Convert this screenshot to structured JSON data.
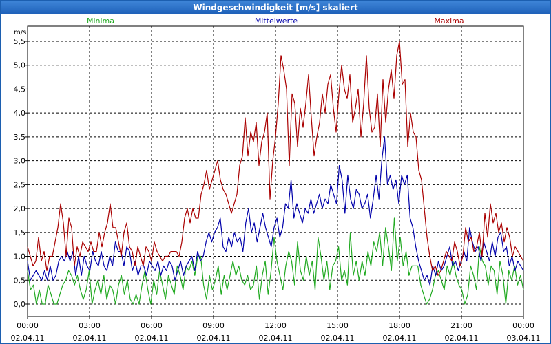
{
  "window": {
    "title": "Windgeschwindigkeit [m/s] skaliert"
  },
  "colors": {
    "minima": "#22aa22",
    "mittel": "#0000aa",
    "maxima": "#aa0000",
    "grid": "#000000"
  },
  "chart_data": {
    "type": "line",
    "title": "Windgeschwindigkeit [m/s] skaliert",
    "ylabel": "m/s",
    "ylim": [
      0,
      5.5
    ],
    "yticks": [
      "0,0",
      "0,5",
      "1,0",
      "1,5",
      "2,0",
      "2,5",
      "3,0",
      "3,5",
      "4,0",
      "4,5",
      "5,0",
      "5,5"
    ],
    "xlim": [
      "02.04.11 00:00",
      "03.04.11 00:00"
    ],
    "xticks": [
      {
        "time": "00:00",
        "date": "02.04.11"
      },
      {
        "time": "03:00",
        "date": "02.04.11"
      },
      {
        "time": "06:00",
        "date": "02.04.11"
      },
      {
        "time": "09:00",
        "date": "02.04.11"
      },
      {
        "time": "12:00",
        "date": "02.04.11"
      },
      {
        "time": "15:00",
        "date": "02.04.11"
      },
      {
        "time": "18:00",
        "date": "02.04.11"
      },
      {
        "time": "21:00",
        "date": "02.04.11"
      },
      {
        "time": "00:00",
        "date": "03.04.11"
      }
    ],
    "grid": true,
    "legend": "top",
    "series": [
      {
        "name": "Minima",
        "color": "#22aa22",
        "values": [
          0.7,
          0.3,
          0.4,
          0.0,
          0.3,
          0.0,
          0.0,
          0.4,
          0.2,
          0.0,
          0.0,
          0.2,
          0.4,
          0.5,
          0.7,
          0.6,
          0.4,
          0.6,
          0.3,
          0.1,
          0.3,
          0.7,
          0.0,
          0.3,
          0.5,
          0.2,
          0.6,
          0.1,
          0.4,
          0.3,
          0.0,
          0.4,
          0.6,
          0.2,
          0.5,
          0.1,
          0.0,
          0.2,
          0.0,
          0.4,
          0.7,
          0.3,
          0.0,
          0.5,
          0.2,
          0.7,
          0.4,
          0.1,
          0.6,
          0.4,
          0.2,
          0.8,
          0.6,
          0.3,
          0.8,
          0.7,
          0.9,
          0.6,
          1.0,
          1.0,
          0.4,
          0.1,
          0.6,
          0.3,
          0.5,
          0.8,
          0.2,
          0.6,
          0.3,
          0.6,
          0.9,
          0.6,
          0.8,
          0.5,
          0.4,
          0.6,
          0.3,
          0.4,
          0.8,
          0.1,
          0.6,
          0.9,
          0.2,
          0.7,
          1.4,
          0.9,
          0.6,
          0.3,
          0.8,
          1.1,
          0.9,
          0.4,
          1.3,
          0.7,
          0.5,
          1.0,
          0.6,
          0.9,
          0.3,
          1.4,
          1.0,
          0.5,
          0.9,
          0.3,
          0.8,
          0.9,
          1.2,
          0.5,
          0.7,
          0.4,
          1.5,
          0.6,
          0.9,
          0.5,
          0.9,
          0.6,
          1.1,
          0.8,
          1.3,
          1.1,
          1.5,
          0.8,
          1.6,
          1.2,
          0.7,
          1.8,
          0.9,
          1.4,
          0.8,
          1.1,
          0.6,
          0.8,
          0.8,
          0.8,
          0.4,
          0.2,
          0.0,
          0.1,
          0.3,
          0.6,
          0.7,
          0.5,
          0.3,
          0.8,
          0.6,
          0.9,
          0.6,
          0.4,
          0.3,
          0.0,
          0.2,
          0.8,
          0.6,
          0.3,
          1.2,
          0.9,
          0.8,
          0.4,
          0.8,
          0.7,
          0.2,
          0.9,
          0.6,
          0.0,
          0.7,
          0.5,
          0.8,
          0.4,
          0.6,
          0.3
        ]
      },
      {
        "name": "Mittelwerte",
        "color": "#0000aa",
        "values": [
          0.9,
          0.5,
          0.6,
          0.7,
          0.6,
          0.5,
          0.7,
          0.5,
          0.8,
          0.5,
          0.6,
          0.9,
          1.0,
          0.9,
          1.1,
          0.9,
          1.1,
          0.6,
          1.0,
          0.6,
          1.0,
          0.8,
          0.7,
          1.1,
          0.9,
          0.8,
          1.1,
          0.8,
          0.7,
          1.0,
          0.8,
          1.3,
          1.1,
          1.1,
          0.8,
          1.2,
          1.1,
          0.7,
          0.9,
          0.6,
          0.8,
          0.8,
          0.6,
          0.9,
          0.8,
          0.7,
          0.9,
          0.6,
          0.8,
          0.7,
          0.9,
          0.8,
          0.5,
          0.7,
          0.9,
          0.6,
          0.8,
          0.9,
          1.0,
          0.7,
          1.1,
          0.9,
          1.0,
          1.3,
          1.5,
          1.3,
          1.5,
          1.6,
          1.8,
          1.2,
          1.1,
          1.4,
          1.2,
          1.5,
          1.3,
          1.4,
          1.1,
          1.7,
          2.0,
          1.5,
          1.7,
          1.3,
          1.6,
          1.9,
          1.6,
          1.4,
          1.2,
          1.6,
          1.8,
          1.4,
          1.6,
          2.1,
          2.0,
          2.6,
          1.8,
          2.1,
          1.9,
          1.7,
          2.0,
          1.9,
          2.2,
          1.9,
          2.1,
          2.3,
          2.0,
          2.2,
          2.1,
          2.5,
          2.3,
          2.1,
          2.9,
          2.6,
          1.9,
          2.7,
          2.2,
          2.0,
          2.4,
          2.3,
          2.0,
          2.1,
          2.3,
          1.8,
          2.2,
          2.7,
          2.2,
          3.0,
          3.5,
          2.5,
          2.7,
          2.4,
          2.6,
          2.1,
          2.7,
          2.5,
          2.7,
          1.8,
          1.6,
          1.2,
          0.9,
          0.7,
          0.5,
          0.6,
          0.4,
          0.8,
          0.6,
          0.9,
          0.7,
          0.8,
          1.0,
          1.2,
          0.8,
          0.9,
          0.7,
          0.9,
          1.1,
          0.9,
          1.6,
          1.3,
          1.1,
          1.2,
          0.9,
          1.3,
          1.1,
          0.9,
          1.3,
          1.0,
          1.4,
          1.5,
          1.1,
          1.2,
          0.8,
          1.0,
          0.7,
          0.9,
          0.8,
          0.7
        ]
      },
      {
        "name": "Maxima",
        "color": "#aa0000",
        "values": [
          1.2,
          1.0,
          0.8,
          0.9,
          1.4,
          0.9,
          1.1,
          0.7,
          1.0,
          1.0,
          1.3,
          1.6,
          2.1,
          1.7,
          1.0,
          1.8,
          1.6,
          0.8,
          1.2,
          1.0,
          1.3,
          1.2,
          1.1,
          1.3,
          1.1,
          1.1,
          1.5,
          1.2,
          1.5,
          1.7,
          2.1,
          1.6,
          1.6,
          1.3,
          1.0,
          1.5,
          1.7,
          1.2,
          1.1,
          0.8,
          1.2,
          1.0,
          0.8,
          1.2,
          1.1,
          0.9,
          1.3,
          1.1,
          1.0,
          0.9,
          1.0,
          1.0,
          1.1,
          1.1,
          1.1,
          1.0,
          1.3,
          1.8,
          2.0,
          1.7,
          2.0,
          1.8,
          1.8,
          2.3,
          2.5,
          2.8,
          2.4,
          2.6,
          2.8,
          3.0,
          2.6,
          2.4,
          2.3,
          2.1,
          1.9,
          2.1,
          2.3,
          2.9,
          3.1,
          3.9,
          3.1,
          3.6,
          3.4,
          3.8,
          2.9,
          3.4,
          3.6,
          4.0,
          2.2,
          3.0,
          3.5,
          4.2,
          5.2,
          4.9,
          4.5,
          2.9,
          4.4,
          4.2,
          3.3,
          4.1,
          3.7,
          4.2,
          4.8,
          3.9,
          3.1,
          3.5,
          3.8,
          4.4,
          4.0,
          4.6,
          4.8,
          4.1,
          3.6,
          4.4,
          5.0,
          4.5,
          4.3,
          4.8,
          3.8,
          4.1,
          4.5,
          3.5,
          4.2,
          5.2,
          4.1,
          3.6,
          3.7,
          4.4,
          3.3,
          4.7,
          3.8,
          4.5,
          4.9,
          4.3,
          5.2,
          5.5,
          4.6,
          4.7,
          3.3,
          4.0,
          3.6,
          3.5,
          2.8,
          2.6,
          2.0,
          1.4,
          1.0,
          0.7,
          0.8,
          0.6,
          0.7,
          0.9,
          1.1,
          1.0,
          0.9,
          1.3,
          1.1,
          0.8,
          1.0,
          1.6,
          1.3,
          1.4,
          1.1,
          1.2,
          1.5,
          1.0,
          1.9,
          1.4,
          2.1,
          1.7,
          1.9,
          1.5,
          1.7,
          1.3,
          1.6,
          1.4,
          1.0,
          1.2,
          1.1,
          1.0,
          0.9
        ]
      }
    ]
  }
}
